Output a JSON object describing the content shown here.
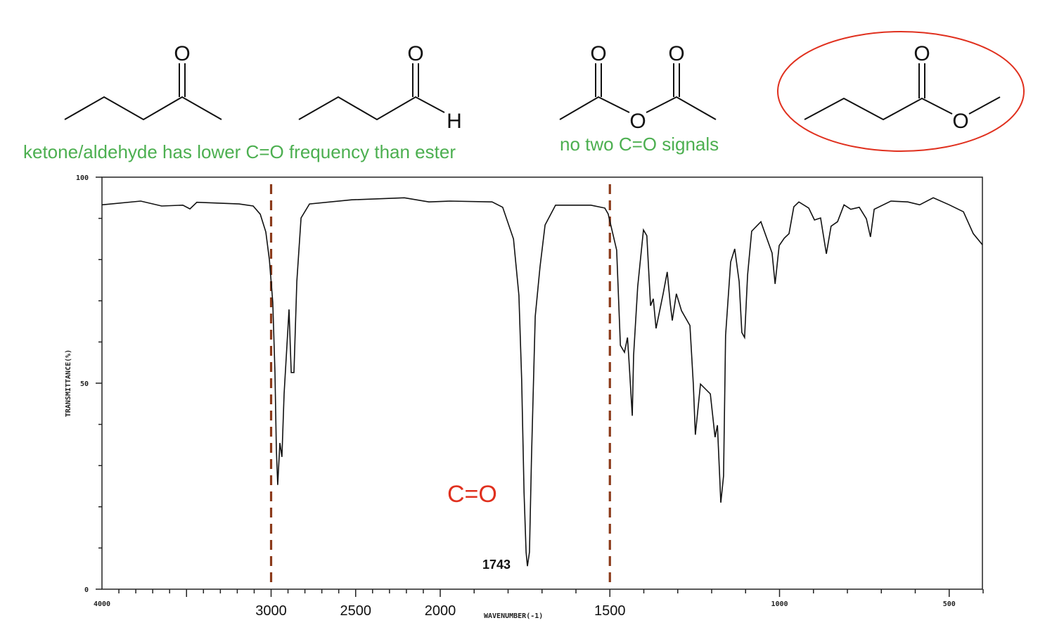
{
  "annotations": {
    "ketone_aldehyde_note": "ketone/aldehyde has lower C=O frequency than ester",
    "anhydride_note": "no two C=O signals",
    "carbonyl_label": "C=O",
    "peak_label": "1743"
  },
  "structures": {
    "ketone": {
      "atoms": [
        "O"
      ]
    },
    "aldehyde": {
      "atoms": [
        "O",
        "H"
      ]
    },
    "anhydride": {
      "atoms": [
        "O",
        "O",
        "O"
      ]
    },
    "ester": {
      "atoms": [
        "O",
        "O"
      ],
      "circled": true,
      "circle_color": "#e0301e"
    }
  },
  "colors": {
    "note_green": "#4caf50",
    "highlight_red": "#e0301e",
    "guide_brown": "#8b3a1a",
    "spectrum": "#111111"
  },
  "chart_data": {
    "type": "line",
    "title": "",
    "xlabel": "WAVENUMBER(-1)",
    "ylabel": "TRANSMITTANCE(%)",
    "xlim": [
      4000,
      400
    ],
    "x_scale_note": "scale changes at 2000",
    "ylim": [
      0,
      100
    ],
    "grid": false,
    "y_tick_labels": [
      {
        "value": 100,
        "label": "100"
      },
      {
        "value": 50,
        "label": "50"
      },
      {
        "value": 0,
        "label": "0"
      }
    ],
    "x_tick_labels": [
      {
        "value": 4000,
        "label": "4000"
      },
      {
        "value": 1000,
        "label": "1000"
      },
      {
        "value": 500,
        "label": "500"
      }
    ],
    "overlay_x_labels": [
      {
        "value": 3000,
        "label": "3000"
      },
      {
        "value": 2500,
        "label": "2500"
      },
      {
        "value": 2000,
        "label": "2000"
      },
      {
        "value": 1500,
        "label": "1500"
      }
    ],
    "guide_lines": [
      3000,
      1500
    ],
    "peak_annotation": {
      "x": 1743,
      "label": "1743"
    },
    "series": [
      {
        "x": [
          4000,
          3771,
          3647,
          3522,
          3480,
          3439,
          3189,
          3106,
          3064,
          3031,
          3010,
          2990,
          2977,
          2969,
          2961,
          2948,
          2936,
          2923,
          2906,
          2894,
          2881,
          2865,
          2848,
          2823,
          2773,
          2524,
          2212,
          2067,
          1971,
          1847,
          1816,
          1784,
          1768,
          1760,
          1753,
          1747,
          1743,
          1737,
          1731,
          1720,
          1706,
          1691,
          1660,
          1556,
          1515,
          1505,
          1480,
          1469,
          1457,
          1448,
          1444,
          1434,
          1430,
          1418,
          1401,
          1391,
          1380,
          1372,
          1364,
          1343,
          1331,
          1322,
          1316,
          1304,
          1289,
          1264,
          1254,
          1248,
          1233,
          1204,
          1190,
          1183,
          1173,
          1165,
          1159,
          1144,
          1132,
          1119,
          1111,
          1103,
          1094,
          1082,
          1055,
          1022,
          1013,
          1001,
          986,
          972,
          958,
          943,
          914,
          897,
          879,
          862,
          848,
          829,
          810,
          790,
          765,
          744,
          732,
          721,
          672,
          622,
          587,
          547,
          500,
          458,
          429,
          402
        ],
        "y": [
          93.3,
          94.2,
          93.0,
          93.2,
          92.3,
          93.9,
          93.5,
          93.0,
          91.0,
          86.7,
          79.9,
          69.6,
          52.6,
          33.8,
          25.3,
          35.5,
          32.1,
          47.4,
          59.4,
          67.9,
          52.6,
          52.6,
          74.7,
          90.1,
          93.5,
          94.5,
          95.0,
          94.0,
          94.2,
          94.0,
          92.7,
          85.0,
          71.3,
          50.9,
          23.5,
          9.0,
          5.6,
          9.0,
          32.0,
          66.2,
          78.2,
          88.4,
          93.2,
          93.2,
          92.5,
          91.1,
          82.3,
          59.2,
          57.5,
          61.1,
          55.8,
          42.1,
          56.8,
          73.4,
          87.2,
          85.8,
          68.8,
          70.5,
          63.3,
          71.7,
          77.0,
          69.3,
          65.2,
          71.7,
          67.6,
          64.0,
          49.8,
          37.5,
          49.8,
          47.4,
          36.9,
          39.8,
          21.0,
          27.5,
          61.6,
          79.4,
          82.6,
          74.6,
          62.3,
          61.1,
          76.3,
          86.9,
          89.2,
          81.6,
          74.1,
          83.4,
          85.2,
          86.3,
          92.8,
          94.0,
          92.5,
          89.6,
          90.1,
          81.4,
          88.1,
          89.2,
          93.3,
          92.2,
          92.7,
          89.9,
          85.5,
          92.2,
          94.2,
          94.0,
          93.3,
          95.0,
          93.3,
          91.6,
          86.3,
          83.6
        ]
      }
    ]
  }
}
